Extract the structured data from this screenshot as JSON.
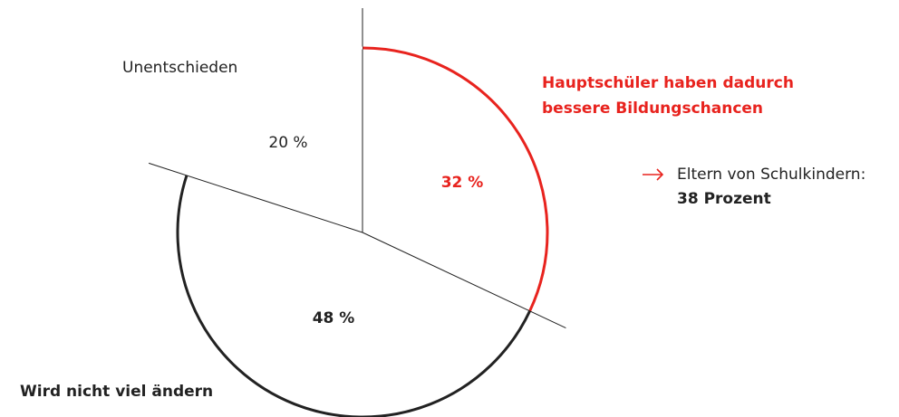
{
  "chart_data": {
    "type": "pie",
    "categories": [
      "Hauptschüler haben dadurch\nbessere Bildungschancen",
      "Wird nicht viel ändern",
      "Unentschieden"
    ],
    "values": [
      32,
      48,
      20
    ],
    "value_labels": [
      "32 %",
      "48 %",
      "20 %"
    ],
    "colors": [
      "#e8231e",
      "#222222",
      "#ffffff"
    ],
    "annotation": {
      "text": "Eltern von Schulkindern:",
      "value_text": "38 Prozent"
    }
  }
}
